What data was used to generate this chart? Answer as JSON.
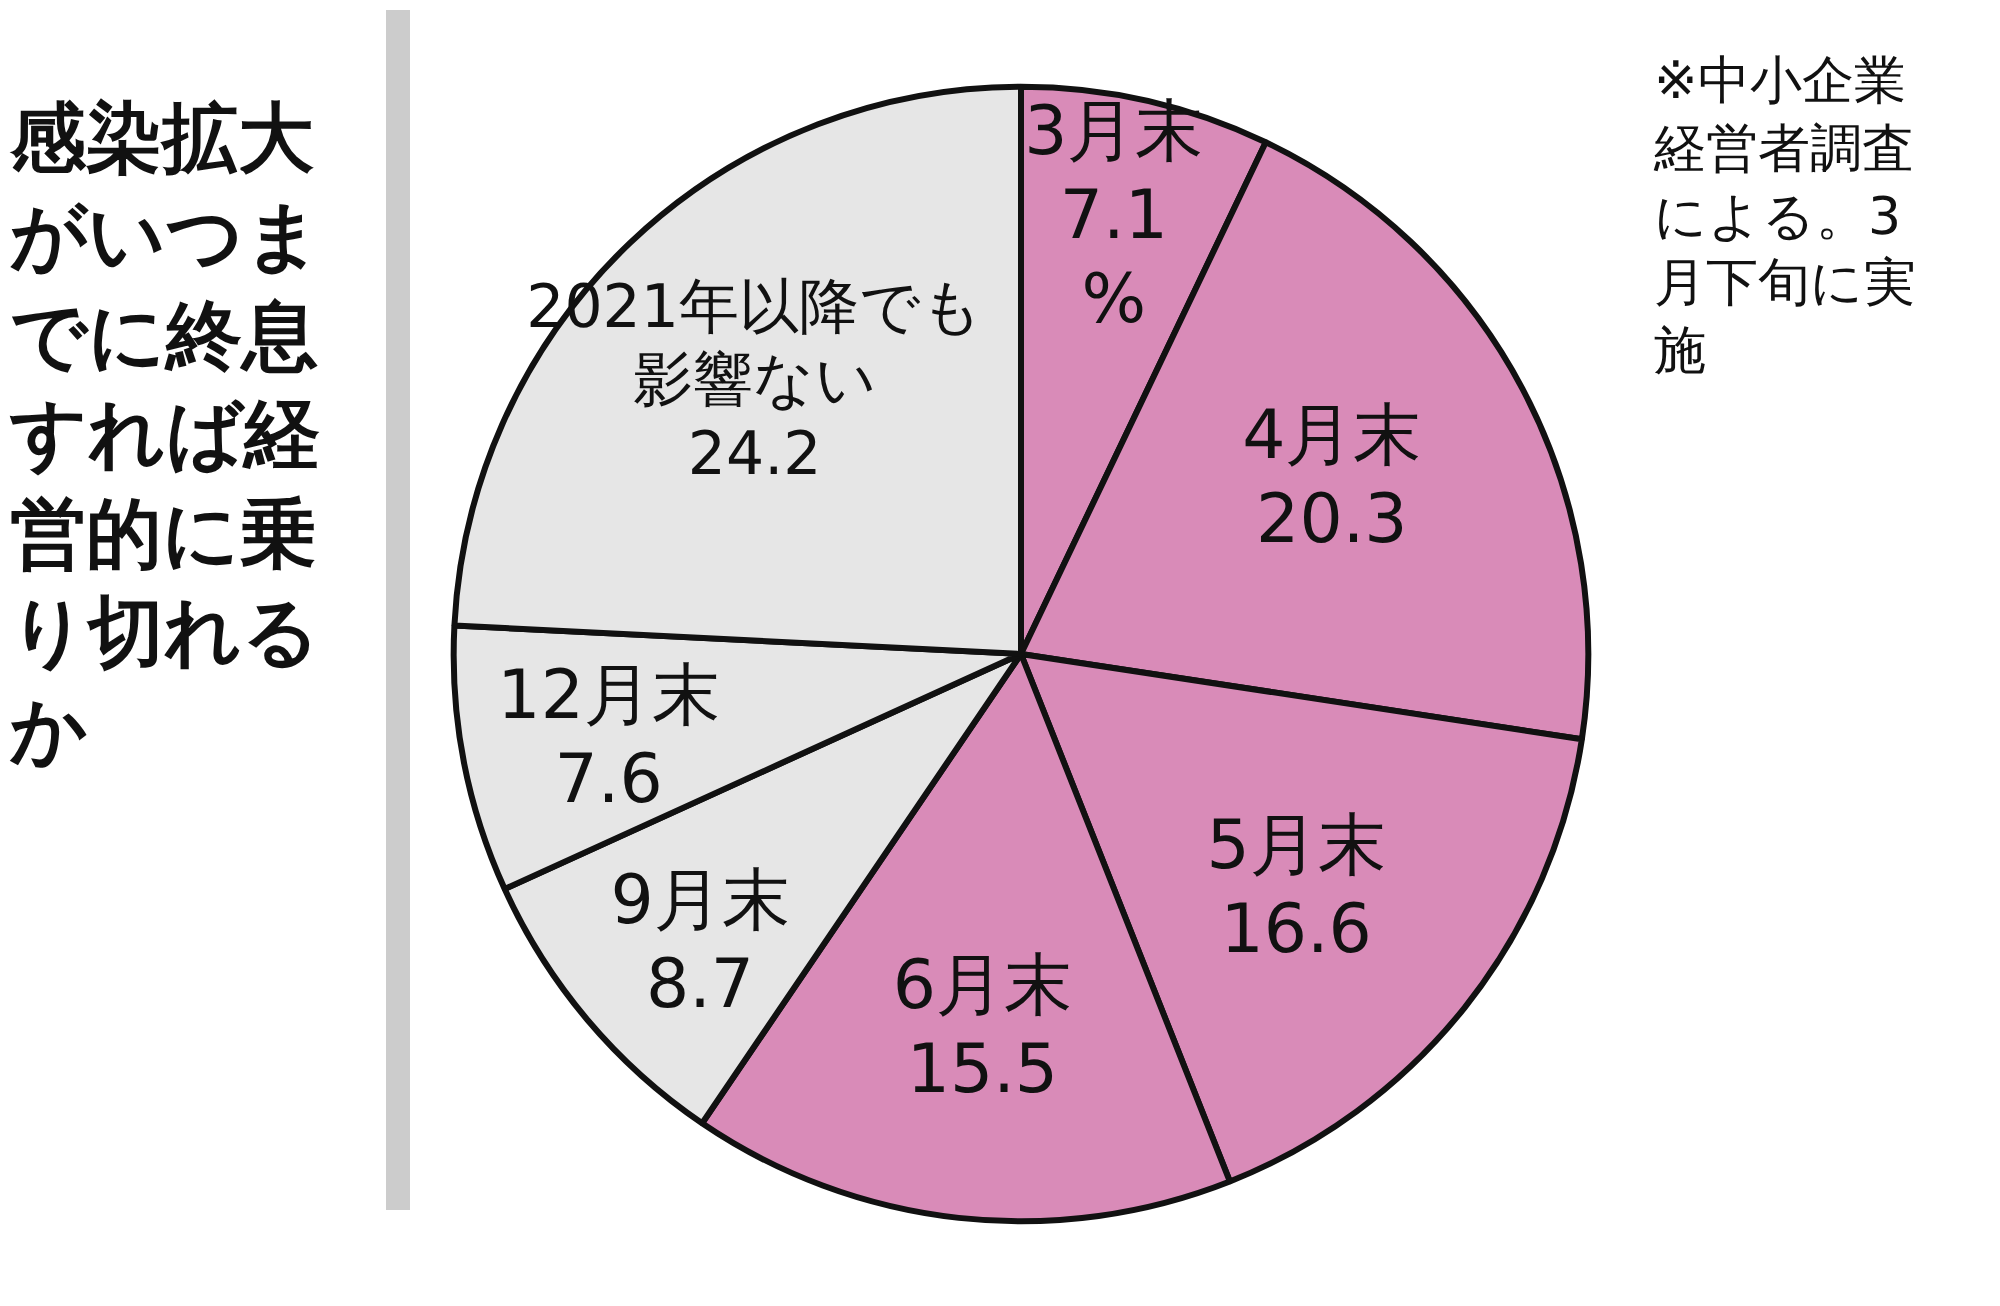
{
  "chart_data": {
    "type": "pie",
    "title": "感染拡大がいつまでに終息すれば経営的に乗り切れるか",
    "categories": [
      "3月末",
      "4月末",
      "5月末",
      "6月末",
      "9月末",
      "12月末",
      "2021年以降でも影響ない"
    ],
    "values": [
      7.1,
      20.3,
      16.6,
      15.5,
      8.7,
      7.6,
      24.2
    ],
    "colors": [
      "#d98bb8",
      "#d98bb8",
      "#d98bb8",
      "#d98bb8",
      "#e6e6e6",
      "#e6e6e6",
      "#e6e6e6"
    ],
    "value_labels": [
      "7.1%",
      "20.3",
      "16.6",
      "15.5",
      "8.7",
      "7.6",
      "24.2"
    ],
    "annotations": [
      "※中小企業経営者調査による。3月下旬に実施"
    ]
  }
}
